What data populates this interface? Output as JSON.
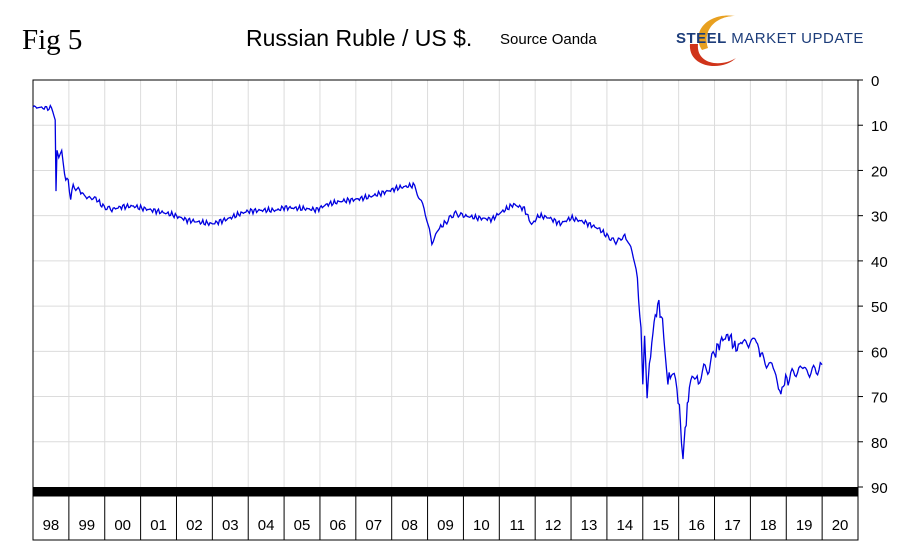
{
  "header": {
    "fig_label": "Fig 5",
    "title": "Russian Ruble / US $.",
    "source": "Source Oanda",
    "logo": {
      "text_bold": "STEEL",
      "text_rest": "MARKET UPDATE",
      "colors": [
        "#e8a020",
        "#d0341a",
        "#1d3d7a"
      ]
    }
  },
  "chart_data": {
    "type": "line",
    "title": "Russian Ruble / US $.",
    "xlabel": "",
    "ylabel": "",
    "categories": [
      "98",
      "99",
      "00",
      "01",
      "02",
      "03",
      "04",
      "05",
      "06",
      "07",
      "08",
      "09",
      "10",
      "11",
      "12",
      "13",
      "14",
      "15",
      "16",
      "17",
      "18",
      "19",
      "20"
    ],
    "x_range": [
      1998.0,
      2021.0
    ],
    "ylim": [
      0,
      90
    ],
    "y_inverted": true,
    "y_ticks": [
      0,
      10,
      20,
      30,
      40,
      50,
      60,
      70,
      80,
      90
    ],
    "y_axis_position": "right",
    "grid": true,
    "line_color": "#0000e0",
    "series": [
      {
        "values": [
          [
            1998.0,
            6.0
          ],
          [
            1998.55,
            6.3
          ],
          [
            1998.62,
            9.5
          ],
          [
            1998.64,
            24.5
          ],
          [
            1998.67,
            15.5
          ],
          [
            1998.72,
            17.5
          ],
          [
            1998.8,
            16.2
          ],
          [
            1998.88,
            21.0
          ],
          [
            1998.98,
            22.5
          ],
          [
            1999.05,
            26.0
          ],
          [
            1999.12,
            23.5
          ],
          [
            1999.3,
            24.5
          ],
          [
            1999.5,
            26.0
          ],
          [
            1999.75,
            26.2
          ],
          [
            1999.95,
            28.0
          ],
          [
            2000.2,
            28.6
          ],
          [
            2000.5,
            28.0
          ],
          [
            2000.8,
            27.9
          ],
          [
            2001.0,
            28.3
          ],
          [
            2001.4,
            28.9
          ],
          [
            2001.9,
            29.8
          ],
          [
            2002.3,
            31.0
          ],
          [
            2002.7,
            31.5
          ],
          [
            2003.0,
            31.8
          ],
          [
            2003.4,
            30.8
          ],
          [
            2003.8,
            29.5
          ],
          [
            2004.0,
            29.0
          ],
          [
            2004.4,
            28.8
          ],
          [
            2004.8,
            28.8
          ],
          [
            2005.0,
            28.2
          ],
          [
            2005.5,
            28.4
          ],
          [
            2005.9,
            28.7
          ],
          [
            2006.2,
            27.5
          ],
          [
            2006.6,
            26.8
          ],
          [
            2007.0,
            26.4
          ],
          [
            2007.4,
            25.8
          ],
          [
            2007.8,
            24.8
          ],
          [
            2008.2,
            23.8
          ],
          [
            2008.6,
            23.3
          ],
          [
            2008.75,
            25.5
          ],
          [
            2008.9,
            28.5
          ],
          [
            2009.05,
            33.0
          ],
          [
            2009.12,
            36.2
          ],
          [
            2009.3,
            33.0
          ],
          [
            2009.5,
            31.5
          ],
          [
            2009.75,
            29.5
          ],
          [
            2010.0,
            30.0
          ],
          [
            2010.4,
            30.5
          ],
          [
            2010.8,
            30.8
          ],
          [
            2011.0,
            29.5
          ],
          [
            2011.4,
            27.5
          ],
          [
            2011.7,
            28.5
          ],
          [
            2011.9,
            32.0
          ],
          [
            2012.1,
            30.0
          ],
          [
            2012.4,
            30.5
          ],
          [
            2012.7,
            31.8
          ],
          [
            2013.0,
            30.5
          ],
          [
            2013.4,
            31.5
          ],
          [
            2013.8,
            33.0
          ],
          [
            2014.0,
            34.5
          ],
          [
            2014.25,
            35.8
          ],
          [
            2014.5,
            34.5
          ],
          [
            2014.7,
            37.5
          ],
          [
            2014.85,
            44.0
          ],
          [
            2014.95,
            56.0
          ],
          [
            2015.0,
            67.5
          ],
          [
            2015.05,
            58.0
          ],
          [
            2015.12,
            69.0
          ],
          [
            2015.25,
            58.0
          ],
          [
            2015.35,
            52.0
          ],
          [
            2015.45,
            49.5
          ],
          [
            2015.55,
            54.0
          ],
          [
            2015.62,
            59.0
          ],
          [
            2015.7,
            67.0
          ],
          [
            2015.8,
            64.5
          ],
          [
            2015.95,
            68.0
          ],
          [
            2016.02,
            72.0
          ],
          [
            2016.08,
            80.0
          ],
          [
            2016.12,
            83.5
          ],
          [
            2016.18,
            77.5
          ],
          [
            2016.3,
            68.0
          ],
          [
            2016.45,
            65.0
          ],
          [
            2016.55,
            67.0
          ],
          [
            2016.7,
            64.0
          ],
          [
            2016.85,
            63.5
          ],
          [
            2017.0,
            60.5
          ],
          [
            2017.2,
            57.5
          ],
          [
            2017.4,
            56.5
          ],
          [
            2017.6,
            59.5
          ],
          [
            2017.8,
            57.5
          ],
          [
            2017.95,
            59.0
          ],
          [
            2018.1,
            56.5
          ],
          [
            2018.3,
            61.0
          ],
          [
            2018.45,
            63.0
          ],
          [
            2018.6,
            62.5
          ],
          [
            2018.75,
            67.0
          ],
          [
            2018.85,
            69.5
          ],
          [
            2018.95,
            66.5
          ],
          [
            2019.05,
            66.0
          ],
          [
            2019.2,
            65.0
          ],
          [
            2019.35,
            64.0
          ],
          [
            2019.5,
            63.5
          ],
          [
            2019.65,
            65.0
          ],
          [
            2019.8,
            64.0
          ],
          [
            2019.95,
            63.5
          ],
          [
            2020.0,
            62.5
          ]
        ]
      }
    ]
  }
}
